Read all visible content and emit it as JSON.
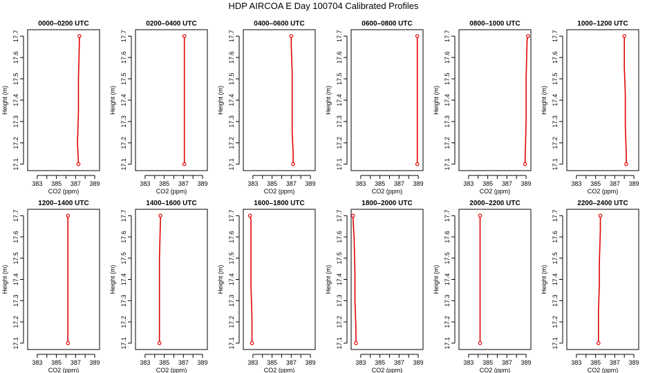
{
  "title": "HDP AIRCOA E  Day 100704  Calibrated Profiles",
  "chart_data": {
    "type": "line",
    "layout": "2 rows x 6 panels",
    "xlabel": "CO2 (ppm)",
    "ylabel": "Height (m)",
    "xlim": [
      382,
      389.5
    ],
    "ylim": [
      17.07,
      17.73
    ],
    "x_ticks": [
      383,
      385,
      387,
      389
    ],
    "x_minor_ticks": [
      384,
      386,
      388
    ],
    "y_ticks": [
      17.1,
      17.2,
      17.3,
      17.4,
      17.5,
      17.6,
      17.7
    ],
    "line_color": "#e00000",
    "marker": "open-circle",
    "panels": [
      {
        "title": "0000–0200 UTC",
        "points": [
          {
            "x": 387.3,
            "y": 17.1
          },
          {
            "x": 387.2,
            "y": 17.2
          },
          {
            "x": 387.3,
            "y": 17.35
          },
          {
            "x": 387.3,
            "y": 17.5
          },
          {
            "x": 387.4,
            "y": 17.68
          },
          {
            "x": 387.4,
            "y": 17.7
          }
        ]
      },
      {
        "title": "0200–0400 UTC",
        "points": [
          {
            "x": 387.1,
            "y": 17.1
          },
          {
            "x": 387.1,
            "y": 17.3
          },
          {
            "x": 387.1,
            "y": 17.55
          },
          {
            "x": 387.1,
            "y": 17.7
          }
        ]
      },
      {
        "title": "0400–0600 UTC",
        "points": [
          {
            "x": 387.2,
            "y": 17.1
          },
          {
            "x": 387.2,
            "y": 17.15
          },
          {
            "x": 387.1,
            "y": 17.25
          },
          {
            "x": 387.1,
            "y": 17.4
          },
          {
            "x": 387.1,
            "y": 17.53
          },
          {
            "x": 387.0,
            "y": 17.66
          },
          {
            "x": 387.0,
            "y": 17.7
          }
        ]
      },
      {
        "title": "0600–0800 UTC",
        "points": [
          {
            "x": 388.9,
            "y": 17.1
          },
          {
            "x": 388.9,
            "y": 17.33
          },
          {
            "x": 388.9,
            "y": 17.68
          },
          {
            "x": 388.9,
            "y": 17.7
          }
        ]
      },
      {
        "title": "0800–1000 UTC",
        "points": [
          {
            "x": 388.9,
            "y": 17.1
          },
          {
            "x": 388.9,
            "y": 17.12
          },
          {
            "x": 389.0,
            "y": 17.3
          },
          {
            "x": 389.0,
            "y": 17.5
          },
          {
            "x": 389.1,
            "y": 17.68
          },
          {
            "x": 389.2,
            "y": 17.7
          }
        ]
      },
      {
        "title": "1000–1200 UTC",
        "points": [
          {
            "x": 388.2,
            "y": 17.1
          },
          {
            "x": 388.2,
            "y": 17.15
          },
          {
            "x": 388.1,
            "y": 17.28
          },
          {
            "x": 388.1,
            "y": 17.43
          },
          {
            "x": 388.0,
            "y": 17.55
          },
          {
            "x": 388.0,
            "y": 17.68
          },
          {
            "x": 388.0,
            "y": 17.7
          }
        ]
      },
      {
        "title": "1200–1400 UTC",
        "points": [
          {
            "x": 386.2,
            "y": 17.1
          },
          {
            "x": 386.2,
            "y": 17.7
          }
        ]
      },
      {
        "title": "1400–1600 UTC",
        "points": [
          {
            "x": 384.5,
            "y": 17.1
          },
          {
            "x": 384.5,
            "y": 17.5
          },
          {
            "x": 384.6,
            "y": 17.68
          },
          {
            "x": 384.6,
            "y": 17.7
          }
        ]
      },
      {
        "title": "1600–1800 UTC",
        "points": [
          {
            "x": 382.9,
            "y": 17.1
          },
          {
            "x": 382.9,
            "y": 17.22
          },
          {
            "x": 382.8,
            "y": 17.37
          },
          {
            "x": 382.8,
            "y": 17.55
          },
          {
            "x": 382.8,
            "y": 17.68
          },
          {
            "x": 382.7,
            "y": 17.7
          }
        ]
      },
      {
        "title": "1800–2000 UTC",
        "points": [
          {
            "x": 382.5,
            "y": 17.1
          },
          {
            "x": 382.5,
            "y": 17.17
          },
          {
            "x": 382.4,
            "y": 17.3
          },
          {
            "x": 382.4,
            "y": 17.43
          },
          {
            "x": 382.3,
            "y": 17.6
          },
          {
            "x": 382.2,
            "y": 17.68
          },
          {
            "x": 382.2,
            "y": 17.7
          }
        ]
      },
      {
        "title": "2000–2200 UTC",
        "points": [
          {
            "x": 384.2,
            "y": 17.1
          },
          {
            "x": 384.2,
            "y": 17.32
          },
          {
            "x": 384.2,
            "y": 17.68
          },
          {
            "x": 384.2,
            "y": 17.7
          }
        ]
      },
      {
        "title": "2200–2400 UTC",
        "points": [
          {
            "x": 385.3,
            "y": 17.1
          },
          {
            "x": 385.3,
            "y": 17.25
          },
          {
            "x": 385.4,
            "y": 17.38
          },
          {
            "x": 385.4,
            "y": 17.48
          },
          {
            "x": 385.5,
            "y": 17.63
          },
          {
            "x": 385.5,
            "y": 17.7
          }
        ]
      }
    ]
  }
}
